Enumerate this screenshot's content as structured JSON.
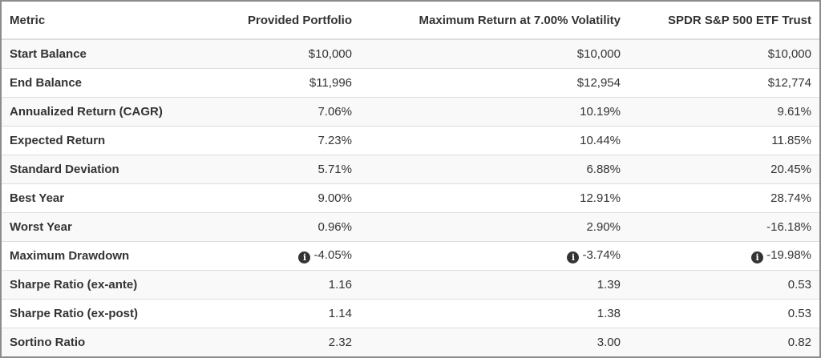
{
  "table": {
    "headers": [
      "Metric",
      "Provided Portfolio",
      "Maximum Return at 7.00% Volatility",
      "SPDR S&P 500 ETF Trust"
    ],
    "rows": [
      {
        "metric": "Start Balance",
        "values": [
          "$10,000",
          "$10,000",
          "$10,000"
        ],
        "info": false
      },
      {
        "metric": "End Balance",
        "values": [
          "$11,996",
          "$12,954",
          "$12,774"
        ],
        "info": false
      },
      {
        "metric": "Annualized Return (CAGR)",
        "values": [
          "7.06%",
          "10.19%",
          "9.61%"
        ],
        "info": false
      },
      {
        "metric": "Expected Return",
        "values": [
          "7.23%",
          "10.44%",
          "11.85%"
        ],
        "info": false
      },
      {
        "metric": "Standard Deviation",
        "values": [
          "5.71%",
          "6.88%",
          "20.45%"
        ],
        "info": false
      },
      {
        "metric": "Best Year",
        "values": [
          "9.00%",
          "12.91%",
          "28.74%"
        ],
        "info": false
      },
      {
        "metric": "Worst Year",
        "values": [
          "0.96%",
          "2.90%",
          "-16.18%"
        ],
        "info": false
      },
      {
        "metric": "Maximum Drawdown",
        "values": [
          "-4.05%",
          "-3.74%",
          "-19.98%"
        ],
        "info": true
      },
      {
        "metric": "Sharpe Ratio (ex-ante)",
        "values": [
          "1.16",
          "1.39",
          "0.53"
        ],
        "info": false
      },
      {
        "metric": "Sharpe Ratio (ex-post)",
        "values": [
          "1.14",
          "1.38",
          "0.53"
        ],
        "info": false
      },
      {
        "metric": "Sortino Ratio",
        "values": [
          "2.32",
          "3.00",
          "0.82"
        ],
        "info": false
      }
    ]
  },
  "icons": {
    "info": "info-circle-icon",
    "info_glyph": "i"
  },
  "colors": {
    "text": "#333333",
    "stripe": "#f9f9f9",
    "border": "#dddddd",
    "frame": "#8c8c8c"
  }
}
